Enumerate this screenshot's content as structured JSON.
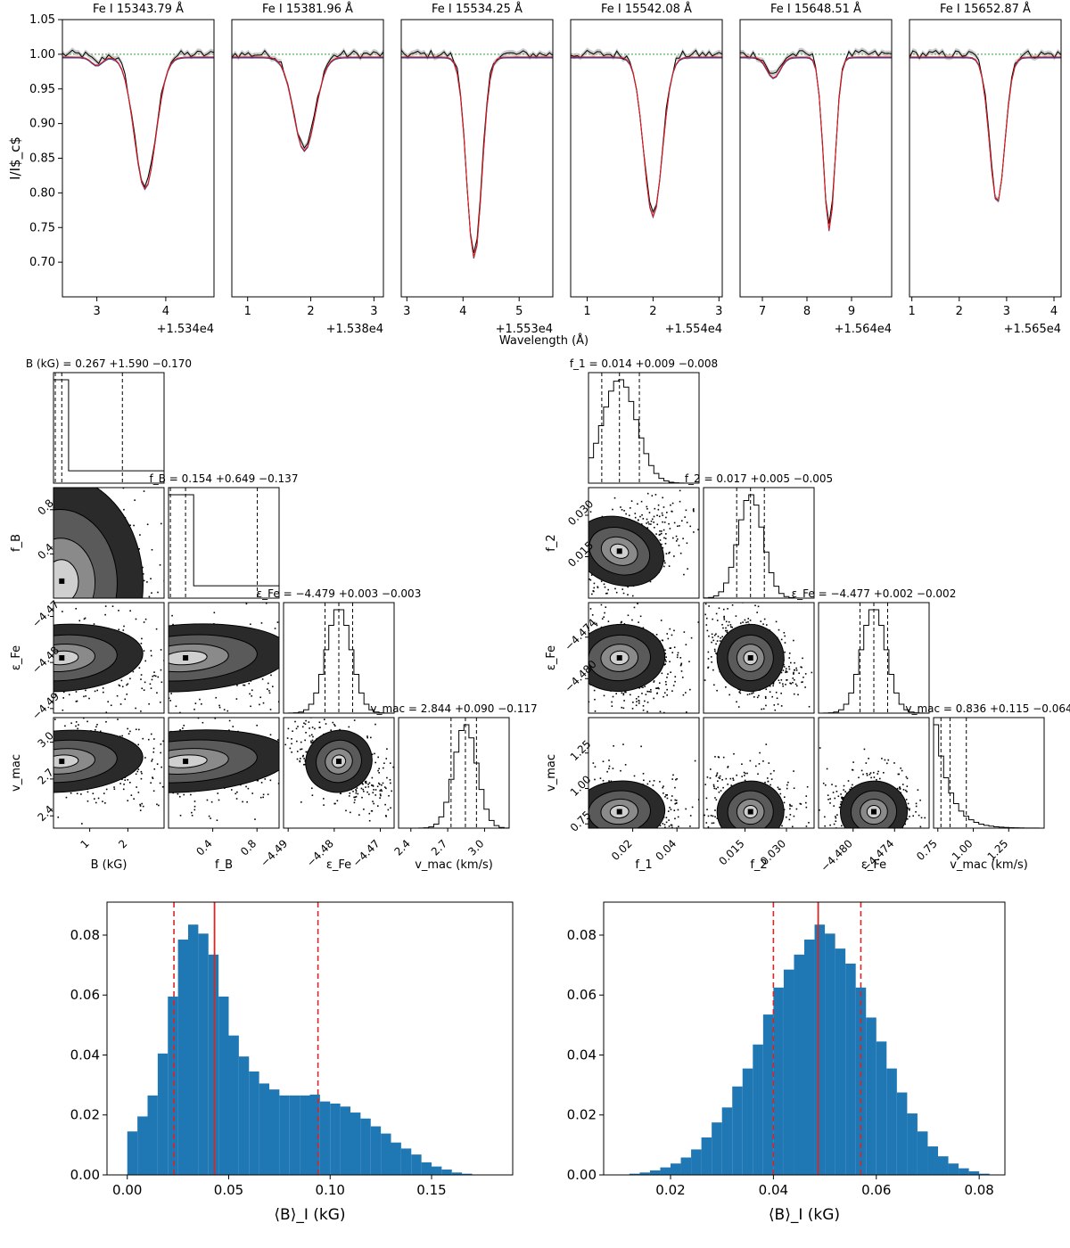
{
  "chart_data": [
    {
      "type": "line",
      "panel": "spectral-line-fits",
      "ylabel": "I/I$_c$",
      "xlabel": "Wavelength (Å)",
      "ylim": [
        0.65,
        1.05
      ],
      "yticks": [
        0.7,
        0.75,
        0.8,
        0.85,
        0.9,
        0.95,
        1.0,
        1.05
      ],
      "continuum_level": 1.0,
      "lines": [
        {
          "title": "Fe I 15343.79 Å",
          "offset_label": "+1.534e4",
          "xlim": [
            2.5,
            4.7
          ],
          "xticks": [
            3,
            4
          ],
          "center": 3.7,
          "depth": 0.19,
          "width": 0.155
        },
        {
          "title": "Fe I 15381.96 Å",
          "offset_label": "+1.538e4",
          "xlim": [
            0.75,
            3.15
          ],
          "xticks": [
            1,
            2,
            3
          ],
          "center": 1.9,
          "depth": 0.135,
          "width": 0.17
        },
        {
          "title": "Fe I 15534.25 Å",
          "offset_label": "+1.553e4",
          "xlim": [
            2.9,
            5.6
          ],
          "xticks": [
            3,
            4,
            5
          ],
          "center": 4.2,
          "depth": 0.29,
          "width": 0.135
        },
        {
          "title": "Fe I 15542.08 Å",
          "offset_label": "+1.554e4",
          "xlim": [
            0.75,
            3.05
          ],
          "xticks": [
            1,
            2,
            3
          ],
          "center": 2.0,
          "depth": 0.23,
          "width": 0.14
        },
        {
          "title": "Fe I 15648.51 Å",
          "offset_label": "+1.564e4",
          "xlim": [
            6.5,
            9.9
          ],
          "xticks": [
            7,
            8,
            9
          ],
          "center": 8.5,
          "depth": 0.25,
          "width": 0.13
        },
        {
          "title": "Fe I 15652.87 Å",
          "offset_label": "+1.565e4",
          "xlim": [
            0.95,
            4.15
          ],
          "xticks": [
            1,
            2,
            3,
            4
          ],
          "center": 2.8,
          "depth": 0.21,
          "width": 0.16
        }
      ]
    },
    {
      "type": "corner",
      "panel": "corner-left",
      "params": [
        {
          "label": "B (kG)",
          "axis": "B",
          "title": "B (kG) = 0.267 +1.590 −0.170",
          "median": 0.267,
          "plus": 1.59,
          "minus": 0.17,
          "range": [
            0.05,
            2.95
          ],
          "ticks": [
            1,
            2
          ]
        },
        {
          "label": "f_B",
          "axis": "f_B",
          "title": "f_B = 0.154 +0.649 −0.137",
          "median": 0.154,
          "plus": 0.649,
          "minus": 0.137,
          "range": [
            0.0,
            1.0
          ],
          "ticks": [
            0.4,
            0.8
          ]
        },
        {
          "label": "ε_Fe",
          "axis": "ε_Fe",
          "title": "ε_Fe = −4.479 +0.003 −0.003",
          "median": -4.479,
          "plus": 0.003,
          "minus": 0.003,
          "range": [
            -4.491,
            -4.467
          ],
          "ticks": [
            -4.49,
            -4.48,
            -4.47
          ]
        },
        {
          "label": "v_mac (km/s)",
          "axis": "v_mac",
          "title": "v_mac = 2.844 +0.090 −0.117",
          "median": 2.844,
          "plus": 0.09,
          "minus": 0.117,
          "range": [
            2.3,
            3.2
          ],
          "ticks": [
            2.4,
            2.7,
            3.0
          ]
        }
      ]
    },
    {
      "type": "corner",
      "panel": "corner-right",
      "params": [
        {
          "label": "f_1",
          "axis": "f_1",
          "title": "f_1 = 0.014 +0.009 −0.008",
          "median": 0.014,
          "plus": 0.009,
          "minus": 0.008,
          "range": [
            0.0,
            0.05
          ],
          "ticks": [
            0.02,
            0.04
          ]
        },
        {
          "label": "f_2",
          "axis": "f_2",
          "title": "f_2 = 0.017 +0.005 −0.005",
          "median": 0.017,
          "plus": 0.005,
          "minus": 0.005,
          "range": [
            0.0,
            0.04
          ],
          "ticks": [
            0.015,
            0.03
          ]
        },
        {
          "label": "ε_Fe",
          "axis": "ε_Fe",
          "title": "ε_Fe = −4.477 +0.002 −0.002",
          "median": -4.477,
          "plus": 0.002,
          "minus": 0.002,
          "range": [
            -4.485,
            -4.469
          ],
          "ticks": [
            -4.48,
            -4.474
          ]
        },
        {
          "label": "v_mac (km/s)",
          "axis": "v_mac",
          "title": "v_mac = 0.836 +0.115 −0.064",
          "median": 0.836,
          "plus": 0.115,
          "minus": 0.064,
          "range": [
            0.72,
            1.5
          ],
          "ticks": [
            0.75,
            1.0,
            1.25
          ]
        }
      ]
    },
    {
      "type": "bar",
      "panel": "histogram-left",
      "xlabel": "⟨B⟩_I (kG)",
      "xlim": [
        -0.01,
        0.19
      ],
      "ylim": [
        0.0,
        0.091
      ],
      "xticks": [
        0.0,
        0.05,
        0.1,
        0.15
      ],
      "yticks": [
        0.0,
        0.02,
        0.04,
        0.06,
        0.08
      ],
      "bin_start": 0.0,
      "bin_width": 0.005,
      "values": [
        0.0145,
        0.0195,
        0.0265,
        0.0405,
        0.0595,
        0.0785,
        0.0835,
        0.0805,
        0.0735,
        0.0595,
        0.0465,
        0.0395,
        0.0345,
        0.0305,
        0.0285,
        0.0265,
        0.0265,
        0.0265,
        0.0268,
        0.0245,
        0.0238,
        0.0228,
        0.0208,
        0.0188,
        0.0162,
        0.0138,
        0.0108,
        0.0088,
        0.0068,
        0.0042,
        0.0028,
        0.0018,
        0.0008,
        0.0004
      ],
      "median_line": 0.043,
      "interval_lines": [
        0.023,
        0.094
      ],
      "line_color": "#d62728",
      "bar_color": "#1f77b4"
    },
    {
      "type": "bar",
      "panel": "histogram-right",
      "xlabel": "⟨B⟩_I (kG)",
      "xlim": [
        0.007,
        0.085
      ],
      "ylim": [
        0.0,
        0.091
      ],
      "xticks": [
        0.02,
        0.04,
        0.06,
        0.08
      ],
      "yticks": [
        0.0,
        0.02,
        0.04,
        0.06,
        0.08
      ],
      "bin_start": 0.012,
      "bin_width": 0.002,
      "values": [
        0.0004,
        0.0008,
        0.0015,
        0.0025,
        0.0038,
        0.0058,
        0.0085,
        0.0125,
        0.0175,
        0.0225,
        0.0295,
        0.0355,
        0.0435,
        0.0535,
        0.0625,
        0.0685,
        0.0735,
        0.0785,
        0.0835,
        0.0805,
        0.0755,
        0.0705,
        0.0625,
        0.0525,
        0.0445,
        0.0355,
        0.0275,
        0.0205,
        0.0145,
        0.0095,
        0.0062,
        0.0038,
        0.0022,
        0.0012,
        0.0004
      ],
      "median_line": 0.0487,
      "interval_lines": [
        0.04,
        0.057
      ],
      "line_color": "#d62728",
      "bar_color": "#1f77b4"
    }
  ]
}
